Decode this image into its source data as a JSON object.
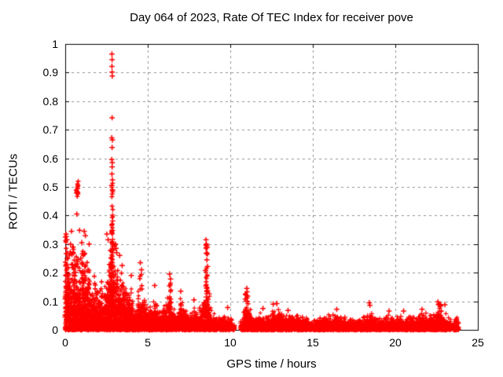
{
  "chart_data": {
    "type": "scatter",
    "title": "Day 064 of 2023, Rate Of TEC Index for receiver pove",
    "xlabel": "GPS time / hours",
    "ylabel": "ROTI / TECUs",
    "xlim": [
      0,
      25
    ],
    "ylim": [
      0,
      1
    ],
    "xticks": [
      0,
      5,
      10,
      15,
      20,
      25
    ],
    "xtick_labels": [
      "0",
      "5",
      "10",
      "15",
      "20",
      "25"
    ],
    "yticks": [
      0,
      0.1,
      0.2,
      0.3,
      0.4,
      0.5,
      0.6,
      0.7,
      0.8,
      0.9,
      1
    ],
    "ytick_labels": [
      "0",
      "0.1",
      "0.2",
      "0.3",
      "0.4",
      "0.5",
      "0.6",
      "0.7",
      "0.8",
      "0.9",
      "1"
    ],
    "grid": {
      "show": true,
      "color": "#909090",
      "dash": [
        3,
        4
      ]
    },
    "marker": {
      "shape": "plus",
      "color": "#ff0000"
    },
    "series_name": "ROTI",
    "data_start_hour": 0.0,
    "data_end_hour": 23.85,
    "gaps": [
      [
        10.25,
        10.62
      ],
      [
        23.42,
        23.5
      ]
    ],
    "dense_top_profile": [
      [
        0,
        0.3
      ],
      [
        0.1,
        0.33
      ],
      [
        0.25,
        0.24
      ],
      [
        0.4,
        0.22
      ],
      [
        0.55,
        0.26
      ],
      [
        0.7,
        0.28
      ],
      [
        0.85,
        0.25
      ],
      [
        1.0,
        0.22
      ],
      [
        1.1,
        0.3
      ],
      [
        1.25,
        0.26
      ],
      [
        1.45,
        0.23
      ],
      [
        1.6,
        0.19
      ],
      [
        1.8,
        0.16
      ],
      [
        2.0,
        0.15
      ],
      [
        2.15,
        0.17
      ],
      [
        2.3,
        0.13
      ],
      [
        2.5,
        0.2
      ],
      [
        2.65,
        0.28
      ],
      [
        2.78,
        0.4
      ],
      [
        2.85,
        0.52
      ],
      [
        2.95,
        0.38
      ],
      [
        3.05,
        0.3
      ],
      [
        3.2,
        0.22
      ],
      [
        3.35,
        0.24
      ],
      [
        3.5,
        0.18
      ],
      [
        3.65,
        0.2
      ],
      [
        3.8,
        0.16
      ],
      [
        3.95,
        0.18
      ],
      [
        4.15,
        0.1
      ],
      [
        4.35,
        0.12
      ],
      [
        4.55,
        0.18
      ],
      [
        4.75,
        0.13
      ],
      [
        4.95,
        0.1
      ],
      [
        5.15,
        0.09
      ],
      [
        5.4,
        0.15
      ],
      [
        5.6,
        0.09
      ],
      [
        5.8,
        0.08
      ],
      [
        6.0,
        0.11
      ],
      [
        6.2,
        0.13
      ],
      [
        6.35,
        0.16
      ],
      [
        6.55,
        0.1
      ],
      [
        6.75,
        0.08
      ],
      [
        7.0,
        0.13
      ],
      [
        7.2,
        0.09
      ],
      [
        7.45,
        0.07
      ],
      [
        7.7,
        0.09
      ],
      [
        7.95,
        0.08
      ],
      [
        8.2,
        0.09
      ],
      [
        8.4,
        0.15
      ],
      [
        8.55,
        0.28
      ],
      [
        8.7,
        0.14
      ],
      [
        8.9,
        0.08
      ],
      [
        9.1,
        0.06
      ],
      [
        9.35,
        0.05
      ],
      [
        9.6,
        0.055
      ],
      [
        9.85,
        0.06
      ],
      [
        10.05,
        0.04
      ],
      [
        10.2,
        0.03
      ],
      [
        10.7,
        0.045
      ],
      [
        10.85,
        0.09
      ],
      [
        11.0,
        0.13
      ],
      [
        11.15,
        0.09
      ],
      [
        11.35,
        0.07
      ],
      [
        11.6,
        0.055
      ],
      [
        11.85,
        0.08
      ],
      [
        12.05,
        0.06
      ],
      [
        12.25,
        0.055
      ],
      [
        12.5,
        0.07
      ],
      [
        12.7,
        0.085
      ],
      [
        12.9,
        0.075
      ],
      [
        13.1,
        0.065
      ],
      [
        13.4,
        0.06
      ],
      [
        13.7,
        0.065
      ],
      [
        14.0,
        0.06
      ],
      [
        14.3,
        0.055
      ],
      [
        14.6,
        0.05
      ],
      [
        14.9,
        0.04
      ],
      [
        15.2,
        0.045
      ],
      [
        15.5,
        0.05
      ],
      [
        15.8,
        0.055
      ],
      [
        16.1,
        0.06
      ],
      [
        16.4,
        0.068
      ],
      [
        16.7,
        0.06
      ],
      [
        17.0,
        0.05
      ],
      [
        17.3,
        0.055
      ],
      [
        17.6,
        0.05
      ],
      [
        17.9,
        0.052
      ],
      [
        18.15,
        0.06
      ],
      [
        18.45,
        0.08
      ],
      [
        18.7,
        0.06
      ],
      [
        19.0,
        0.05
      ],
      [
        19.3,
        0.05
      ],
      [
        19.6,
        0.06
      ],
      [
        19.9,
        0.05
      ],
      [
        20.2,
        0.052
      ],
      [
        20.5,
        0.06
      ],
      [
        20.8,
        0.05
      ],
      [
        21.1,
        0.055
      ],
      [
        21.4,
        0.062
      ],
      [
        21.7,
        0.068
      ],
      [
        22.0,
        0.058
      ],
      [
        22.3,
        0.068
      ],
      [
        22.55,
        0.088
      ],
      [
        22.8,
        0.078
      ],
      [
        23.0,
        0.065
      ],
      [
        23.2,
        0.055
      ],
      [
        23.35,
        0.05
      ],
      [
        23.55,
        0.05
      ],
      [
        23.7,
        0.055
      ],
      [
        23.85,
        0.04
      ]
    ],
    "clusters": [
      {
        "x": 0.04,
        "w": 0.08,
        "y0": 0.12,
        "y1": 0.33,
        "n": 16
      },
      {
        "x": 0.3,
        "w": 0.5,
        "y0": 0.13,
        "y1": 0.29,
        "n": 30
      },
      {
        "x": 0.72,
        "w": 0.14,
        "y0": 0.44,
        "y1": 0.525,
        "n": 14
      },
      {
        "x": 0.6,
        "w": 0.35,
        "y0": 0.1,
        "y1": 0.26,
        "n": 22
      },
      {
        "x": 1.2,
        "w": 0.55,
        "y0": 0.12,
        "y1": 0.28,
        "n": 24
      },
      {
        "x": 2.0,
        "w": 0.5,
        "y0": 0.09,
        "y1": 0.19,
        "n": 16
      },
      {
        "x": 2.75,
        "w": 0.25,
        "y0": 0.14,
        "y1": 0.32,
        "n": 16
      },
      {
        "x": 2.85,
        "w": 0.07,
        "y0": 0.3,
        "y1": 0.52,
        "n": 22
      },
      {
        "x": 3.3,
        "w": 0.35,
        "y0": 0.09,
        "y1": 0.22,
        "n": 12
      },
      {
        "x": 4.6,
        "w": 0.18,
        "y0": 0.08,
        "y1": 0.2,
        "n": 8
      },
      {
        "x": 6.35,
        "w": 0.14,
        "y0": 0.08,
        "y1": 0.17,
        "n": 8
      },
      {
        "x": 8.57,
        "w": 0.12,
        "y0": 0.1,
        "y1": 0.3,
        "n": 14
      },
      {
        "x": 11.0,
        "w": 0.2,
        "y0": 0.05,
        "y1": 0.13,
        "n": 10
      },
      {
        "x": 22.65,
        "w": 0.3,
        "y0": 0.05,
        "y1": 0.09,
        "n": 10
      }
    ],
    "outliers": [
      [
        0.05,
        0.335
      ],
      [
        0.1,
        0.315
      ],
      [
        0.32,
        0.3
      ],
      [
        0.38,
        0.345
      ],
      [
        0.7,
        0.405
      ],
      [
        0.87,
        0.348
      ],
      [
        1.15,
        0.345
      ],
      [
        1.22,
        0.33
      ],
      [
        1.0,
        0.305
      ],
      [
        1.45,
        0.3
      ],
      [
        2.52,
        0.335
      ],
      [
        2.6,
        0.315
      ],
      [
        2.83,
        0.965
      ],
      [
        2.84,
        0.945
      ],
      [
        2.83,
        0.922
      ],
      [
        2.84,
        0.902
      ],
      [
        2.85,
        0.888
      ],
      [
        2.84,
        0.742
      ],
      [
        2.82,
        0.672
      ],
      [
        2.86,
        0.664
      ],
      [
        2.84,
        0.638
      ],
      [
        2.82,
        0.596
      ],
      [
        2.85,
        0.585
      ],
      [
        2.84,
        0.57
      ],
      [
        2.83,
        0.545
      ],
      [
        2.86,
        0.525
      ],
      [
        2.82,
        0.505
      ],
      [
        2.87,
        0.49
      ],
      [
        3.05,
        0.3
      ],
      [
        3.08,
        0.285
      ],
      [
        3.12,
        0.27
      ],
      [
        3.3,
        0.26
      ],
      [
        3.45,
        0.225
      ],
      [
        4.0,
        0.19
      ],
      [
        4.55,
        0.235
      ],
      [
        4.62,
        0.21
      ],
      [
        5.42,
        0.155
      ],
      [
        6.32,
        0.195
      ],
      [
        6.38,
        0.178
      ],
      [
        7.0,
        0.135
      ],
      [
        7.8,
        0.105
      ],
      [
        8.53,
        0.315
      ],
      [
        8.56,
        0.3
      ],
      [
        8.6,
        0.288
      ],
      [
        8.55,
        0.268
      ],
      [
        8.58,
        0.245
      ],
      [
        8.62,
        0.222
      ],
      [
        8.5,
        0.208
      ],
      [
        9.84,
        0.078
      ],
      [
        10.95,
        0.122
      ],
      [
        11.0,
        0.145
      ],
      [
        11.02,
        0.133
      ],
      [
        11.05,
        0.118
      ],
      [
        11.98,
        0.075
      ],
      [
        12.6,
        0.09
      ],
      [
        12.82,
        0.092
      ],
      [
        13.5,
        0.068
      ],
      [
        16.45,
        0.072
      ],
      [
        18.42,
        0.095
      ],
      [
        18.46,
        0.086
      ],
      [
        19.62,
        0.066
      ],
      [
        20.5,
        0.066
      ],
      [
        21.62,
        0.072
      ],
      [
        22.58,
        0.098
      ],
      [
        22.64,
        0.091
      ],
      [
        22.72,
        0.086
      ],
      [
        23.0,
        0.088
      ]
    ]
  }
}
